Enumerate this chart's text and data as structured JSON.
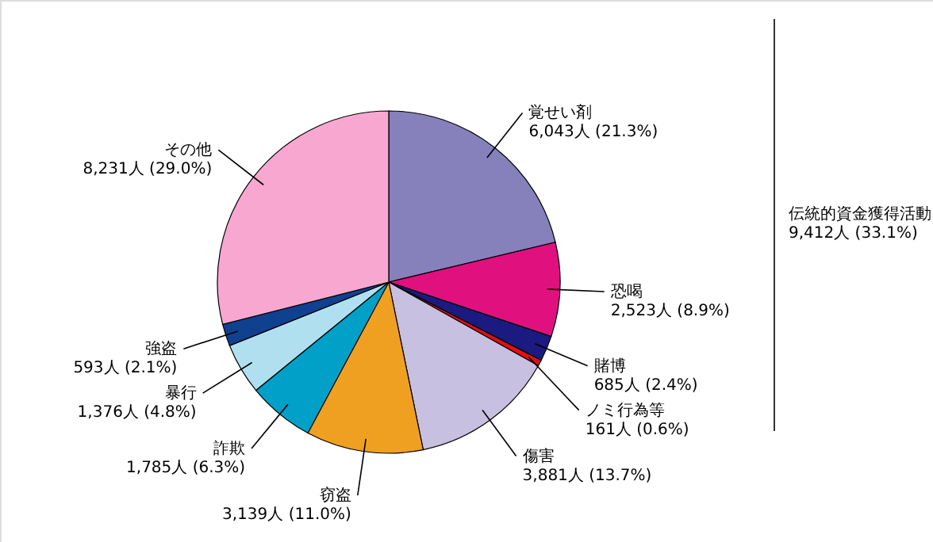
{
  "chart_data": {
    "type": "pie",
    "categories": [
      "覚せい剤",
      "恐喝",
      "賭博",
      "ノミ行為等",
      "傷害",
      "窃盗",
      "詐欺",
      "暴行",
      "強盗",
      "その他"
    ],
    "values": [
      6043,
      2523,
      685,
      161,
      3881,
      3139,
      1785,
      1376,
      593,
      8231
    ],
    "value_labels": [
      "6,043人 (21.3%)",
      "2,523人 (8.9%)",
      "685人 (2.4%)",
      "161人 (0.6%)",
      "3,881人 (13.7%)",
      "3,139人 (11.0%)",
      "1,785人 (6.3%)",
      "1,376人 (4.8%)",
      "593人 (2.1%)",
      "8,231人 (29.0%)"
    ],
    "colors": [
      "#8680bb",
      "#e0107f",
      "#1a1a80",
      "#e01010",
      "#c8c0e0",
      "#f0a020",
      "#00a0c8",
      "#b0e0f0",
      "#104090",
      "#f8a8d0"
    ],
    "annotations": [
      "伝統的資金獲得活動\n9,412人 (33.1%)"
    ]
  }
}
